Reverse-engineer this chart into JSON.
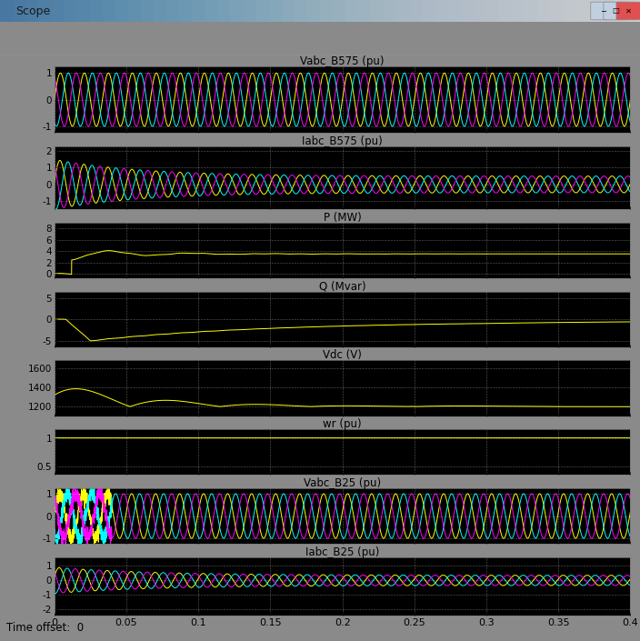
{
  "title": "Scope",
  "subplots": [
    {
      "title": "Vabc_B575 (pu)",
      "ylim": [
        -1.25,
        1.25
      ],
      "yticks": [
        -1,
        0,
        1
      ],
      "type": "vabc575"
    },
    {
      "title": "Iabc_B575 (pu)",
      "ylim": [
        -1.5,
        2.3
      ],
      "yticks": [
        -1,
        0,
        1,
        2
      ],
      "type": "iabc575"
    },
    {
      "title": "P (MW)",
      "ylim": [
        -0.8,
        9.0
      ],
      "yticks": [
        0,
        2,
        4,
        6,
        8
      ],
      "type": "P"
    },
    {
      "title": "Q (Mvar)",
      "ylim": [
        -6.5,
        6.5
      ],
      "yticks": [
        -5,
        0,
        5
      ],
      "type": "Q"
    },
    {
      "title": "Vdc (V)",
      "ylim": [
        1100,
        1680
      ],
      "yticks": [
        1200,
        1400,
        1600
      ],
      "type": "Vdc"
    },
    {
      "title": "wr (pu)",
      "ylim": [
        0.35,
        1.15
      ],
      "yticks": [
        0.5,
        1
      ],
      "type": "wr"
    },
    {
      "title": "Vabc_B25 (pu)",
      "ylim": [
        -1.25,
        1.25
      ],
      "yticks": [
        -1,
        0,
        1
      ],
      "type": "vabc25"
    },
    {
      "title": "Iabc_B25 (pu)",
      "ylim": [
        -2.4,
        1.6
      ],
      "yticks": [
        -2,
        -1,
        0,
        1
      ],
      "type": "iabc25"
    }
  ],
  "xlim": [
    0,
    0.4
  ],
  "xticks": [
    0,
    0.05,
    0.1,
    0.15,
    0.2,
    0.25,
    0.3,
    0.35,
    0.4
  ],
  "xtick_labels": [
    "0",
    "0.05",
    "0.1",
    "0.15",
    "0.2",
    "0.25",
    "0.3",
    "0.35",
    "0.4"
  ],
  "xlabel": "Time offset:  0",
  "colors": {
    "yellow": "#ffff00",
    "cyan": "#00ffff",
    "magenta": "#ff00ff"
  },
  "window_bg": "#c8d4e0",
  "titlebar_top": "#aac4e0",
  "titlebar_bot": "#7090b8",
  "toolbar_color": "#e8e8e8",
  "plot_bg": "#8a8a8a",
  "subplot_bg": "#000000",
  "grid_color": "#ffffff",
  "title_color": "#000000",
  "tick_color": "#000000"
}
